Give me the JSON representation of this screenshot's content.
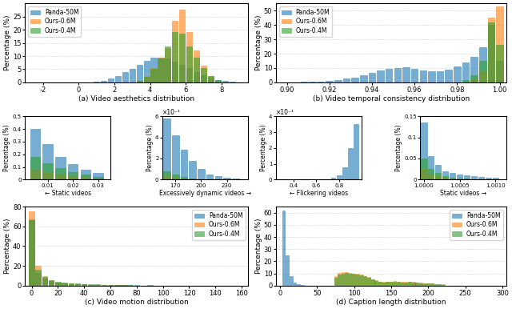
{
  "chart_data": [
    {
      "type": "bar",
      "xlabel": "(a) Video aesthetics distribution",
      "ylabel": "Percentage (%)",
      "xlim": [
        -3,
        9.5
      ],
      "ylim": [
        0,
        30
      ],
      "xticks": [
        -2,
        0,
        2,
        4,
        6,
        8
      ],
      "yticks": [
        0,
        5,
        10,
        15,
        20,
        25
      ],
      "grid": true,
      "legend": "upper left",
      "series": [
        {
          "name": "Panda-50M",
          "x": [
            1.0,
            1.4,
            1.8,
            2.2,
            2.6,
            3.0,
            3.4,
            3.8,
            4.2,
            4.6,
            5.0,
            5.4,
            5.8,
            6.2,
            6.6,
            7.0,
            7.4,
            7.8,
            8.2,
            8.6
          ],
          "values": [
            0.3,
            0.7,
            1.5,
            2.5,
            3.8,
            5.2,
            6.8,
            8.2,
            9.3,
            9.5,
            9.0,
            8.0,
            6.8,
            5.5,
            4.0,
            2.8,
            1.8,
            1.0,
            0.5,
            0.2
          ]
        },
        {
          "name": "Ours-0.6M",
          "x": [
            3.4,
            3.8,
            4.2,
            4.6,
            5.0,
            5.4,
            5.8,
            6.2,
            6.6,
            7.0,
            7.4
          ],
          "values": [
            0.5,
            2.5,
            5.5,
            9.5,
            13.0,
            23.5,
            27.5,
            19.0,
            12.0,
            6.5,
            2.5
          ]
        },
        {
          "name": "Ours-0.4M",
          "x": [
            3.4,
            3.8,
            4.2,
            4.6,
            5.0,
            5.4,
            5.8,
            6.2,
            6.6,
            7.0,
            7.4,
            7.8
          ],
          "values": [
            0.5,
            2.0,
            5.0,
            9.0,
            13.5,
            19.0,
            18.5,
            13.5,
            9.5,
            5.5,
            2.5,
            1.0
          ]
        }
      ]
    },
    {
      "type": "bar",
      "xlabel": "(b) Video temporal consistency distribution",
      "ylabel": "Percentage (%)",
      "xlim": [
        0.895,
        1.003
      ],
      "ylim": [
        0,
        55
      ],
      "xticks": [
        {
          "value": 0.9,
          "label": "0.90"
        },
        0.92,
        0.94,
        0.96,
        0.98,
        {
          "value": 1.0,
          "label": "1.00"
        }
      ],
      "yticks": [
        0,
        10,
        20,
        30,
        40,
        50
      ],
      "grid": true,
      "legend": "upper left",
      "series": [
        {
          "name": "Panda-50M",
          "x": [
            0.9,
            0.904,
            0.908,
            0.912,
            0.916,
            0.92,
            0.924,
            0.928,
            0.932,
            0.936,
            0.94,
            0.944,
            0.948,
            0.952,
            0.956,
            0.96,
            0.964,
            0.968,
            0.972,
            0.976,
            0.98,
            0.984,
            0.988,
            0.992,
            0.996,
            1.0
          ],
          "values": [
            0.1,
            0.2,
            0.3,
            0.5,
            0.8,
            1.2,
            1.8,
            2.5,
            3.5,
            5.0,
            6.5,
            8.5,
            9.5,
            10.0,
            10.5,
            9.5,
            8.5,
            7.5,
            8.0,
            9.0,
            11.0,
            14.0,
            18.0,
            24.5,
            40.0,
            15.0
          ]
        },
        {
          "name": "Ours-0.6M",
          "x": [
            0.988,
            0.992,
            0.996,
            1.0
          ],
          "values": [
            2.0,
            8.0,
            45.0,
            53.0
          ]
        },
        {
          "name": "Ours-0.4M",
          "x": [
            0.984,
            0.988,
            0.992,
            0.996,
            1.0
          ],
          "values": [
            1.5,
            5.0,
            15.0,
            42.0,
            26.0
          ]
        }
      ]
    },
    {
      "type": "bar",
      "title": "×10⁻¹",
      "xlabel": "← Flickering videos",
      "ylabel": "Percentage (%)",
      "xlim": [
        0.25,
        1.0
      ],
      "ylim": [
        0,
        4
      ],
      "xticks": [
        0.4,
        0.6,
        0.8
      ],
      "yticks": [
        0,
        1,
        2,
        3,
        4
      ],
      "series": [
        {
          "x": [
            0.3,
            0.35,
            0.4,
            0.45,
            0.5,
            0.55,
            0.6,
            0.65,
            0.7,
            0.75,
            0.8,
            0.85,
            0.9,
            0.95
          ],
          "values": [
            0.0,
            0.0,
            0.0,
            0.0,
            0.0,
            0.0,
            0.01,
            0.02,
            0.04,
            0.1,
            0.25,
            0.8,
            2.0,
            3.5
          ]
        },
        {
          "x": [
            0.3,
            0.35,
            0.4,
            0.45,
            0.5,
            0.55,
            0.6,
            0.65,
            0.7,
            0.75,
            0.8,
            0.85,
            0.9,
            0.95
          ],
          "values": [
            0.0,
            0.0,
            0.0,
            0.0,
            0.0,
            0.0,
            0.0,
            0.0,
            0.0,
            0.0,
            0.0,
            0.0,
            0.0,
            0.0
          ]
        },
        {
          "x": [
            0.3,
            0.35,
            0.4,
            0.45,
            0.5,
            0.55,
            0.6,
            0.65,
            0.7,
            0.75,
            0.8,
            0.85,
            0.9,
            0.95
          ],
          "values": [
            0.0,
            0.0,
            0.0,
            0.0,
            0.0,
            0.0,
            0.0,
            0.0,
            0.0,
            0.0,
            0.0,
            0.0,
            0.0,
            0.0
          ]
        }
      ]
    },
    {
      "type": "bar",
      "xlabel": "Static videos →",
      "ylabel": "Percentage (%)",
      "xlim": [
        0.99995,
        1.00115
      ],
      "ylim": [
        0,
        0.15
      ],
      "xticks": [
        {
          "value": 1.0,
          "label": "1.0000"
        },
        {
          "value": 1.0005,
          "label": "1.0005"
        },
        {
          "value": 1.001,
          "label": "1.0010"
        }
      ],
      "yticks": [
        0,
        0.05,
        0.1,
        0.15
      ],
      "series": [
        {
          "x": [
            1.0,
            1.0001,
            1.0002,
            1.0003,
            1.0004,
            1.0005,
            1.0006,
            1.0007,
            1.0008,
            1.0009,
            1.001
          ],
          "values": [
            0.135,
            0.055,
            0.035,
            0.02,
            0.015,
            0.012,
            0.01,
            0.008,
            0.006,
            0.005,
            0.004
          ]
        },
        {
          "x": [
            1.0,
            1.0001,
            1.0002,
            1.0003,
            1.0004,
            1.0005,
            1.0006,
            1.0007,
            1.0008,
            1.0009,
            1.001
          ],
          "values": [
            0.025,
            0.012,
            0.008,
            0.005,
            0.003,
            0.002,
            0.001,
            0.001,
            0.0,
            0.0,
            0.0
          ]
        },
        {
          "x": [
            1.0,
            1.0001,
            1.0002,
            1.0003,
            1.0004,
            1.0005,
            1.0006,
            1.0007,
            1.0008,
            1.0009,
            1.001
          ],
          "values": [
            0.05,
            0.025,
            0.015,
            0.008,
            0.005,
            0.003,
            0.002,
            0.001,
            0.0,
            0.0,
            0.0
          ]
        }
      ]
    },
    {
      "type": "bar",
      "xlabel": "(c) Video motion distribution",
      "ylabel": "Percentage (%)",
      "xlim": [
        -5,
        165
      ],
      "ylim": [
        0,
        80
      ],
      "xticks": [
        0,
        20,
        40,
        60,
        80,
        100,
        120,
        140,
        160
      ],
      "yticks": [
        0,
        20,
        40,
        60,
        80
      ],
      "grid": true,
      "legend": "upper right",
      "series": [
        {
          "name": "Panda-50M",
          "x": [
            0,
            5,
            10,
            15,
            20,
            25,
            30,
            35,
            40,
            45,
            50,
            55,
            60,
            65,
            70,
            75,
            80,
            90,
            100,
            110,
            120,
            130,
            140,
            150,
            160
          ],
          "values": [
            67,
            13,
            7,
            4.5,
            3.0,
            2.2,
            1.8,
            1.5,
            1.2,
            1.0,
            0.9,
            0.8,
            0.7,
            0.6,
            0.55,
            0.5,
            0.45,
            0.35,
            0.28,
            0.22,
            0.18,
            0.14,
            0.1,
            0.07,
            0.05
          ]
        },
        {
          "name": "Ours-0.6M",
          "x": [
            0,
            5,
            10,
            15,
            20,
            25,
            30,
            35,
            40,
            45,
            50,
            55,
            60,
            65,
            70,
            75,
            80
          ],
          "values": [
            75,
            20,
            10,
            5.5,
            3.5,
            2.5,
            2.0,
            1.6,
            1.3,
            1.0,
            0.8,
            0.7,
            0.55,
            0.45,
            0.35,
            0.25,
            0.18
          ]
        },
        {
          "name": "Ours-0.4M",
          "x": [
            0,
            5,
            10,
            15,
            20,
            25,
            30,
            35,
            40,
            45,
            50,
            55,
            60,
            65,
            70,
            75,
            80
          ],
          "values": [
            66,
            16,
            9,
            5.5,
            3.8,
            2.8,
            2.3,
            2.0,
            1.8,
            1.5,
            1.3,
            1.1,
            0.9,
            0.75,
            0.6,
            0.45,
            0.3
          ]
        }
      ]
    },
    {
      "type": "bar",
      "xlabel": "← Static videos",
      "ylabel": "Percentage (%)",
      "xlim": [
        0.001,
        0.035
      ],
      "ylim": [
        0,
        0.5
      ],
      "xticks": [
        0.01,
        0.02,
        0.03
      ],
      "yticks": [
        0,
        0.1,
        0.2,
        0.3,
        0.4,
        0.5
      ],
      "series": [
        {
          "x": [
            0.005,
            0.01,
            0.015,
            0.02,
            0.025,
            0.03
          ],
          "values": [
            0.4,
            0.28,
            0.18,
            0.12,
            0.08,
            0.05
          ]
        },
        {
          "x": [
            0.005,
            0.01,
            0.015,
            0.02,
            0.025,
            0.03
          ],
          "values": [
            0.08,
            0.06,
            0.04,
            0.03,
            0.02,
            0.01
          ]
        },
        {
          "x": [
            0.005,
            0.01,
            0.015,
            0.02,
            0.025,
            0.03
          ],
          "values": [
            0.18,
            0.13,
            0.09,
            0.06,
            0.04,
            0.02
          ]
        }
      ]
    },
    {
      "type": "bar",
      "title": "×10⁻¹",
      "xlabel": "Excessively dynamic videos →",
      "ylabel": "Percentage (%)",
      "xlim": [
        155,
        255
      ],
      "ylim": [
        0,
        6
      ],
      "xticks": [
        170,
        200,
        230
      ],
      "yticks": [
        0,
        2,
        4,
        6
      ],
      "series": [
        {
          "x": [
            160,
            170,
            180,
            190,
            200,
            210,
            220,
            230,
            240,
            250
          ],
          "values": [
            5.8,
            4.2,
            2.8,
            1.8,
            1.0,
            0.5,
            0.3,
            0.15,
            0.08,
            0.04
          ]
        },
        {
          "x": [
            160,
            170,
            180,
            190,
            200,
            210,
            220,
            230,
            240,
            250
          ],
          "values": [
            0.3,
            0.15,
            0.08,
            0.04,
            0.02,
            0.01,
            0.0,
            0.0,
            0.0,
            0.0
          ]
        },
        {
          "x": [
            160,
            170,
            180,
            190,
            200,
            210,
            220,
            230,
            240,
            250
          ],
          "values": [
            0.8,
            0.5,
            0.25,
            0.12,
            0.06,
            0.03,
            0.01,
            0.0,
            0.0,
            0.0
          ]
        }
      ]
    },
    {
      "type": "bar",
      "xlabel": "(d) Caption length distribution",
      "ylabel": "Percentage (%)",
      "xlim": [
        -5,
        305
      ],
      "ylim": [
        0,
        65
      ],
      "xticks": [
        0,
        50,
        100,
        150,
        200,
        250,
        300
      ],
      "yticks": [
        0,
        10,
        20,
        30,
        40,
        50,
        60
      ],
      "grid": true,
      "legend": "upper right",
      "series": [
        {
          "name": "Panda-50M",
          "x": [
            5,
            10,
            15,
            20,
            25,
            30
          ],
          "values": [
            62,
            25,
            8,
            2.5,
            1.0,
            0.5
          ]
        },
        {
          "name": "Ours-0.6M",
          "x": [
            75,
            80,
            85,
            90,
            95,
            100,
            105,
            110,
            115,
            120,
            125,
            130,
            135,
            140,
            145,
            150,
            155,
            160,
            165,
            170,
            175,
            180,
            185,
            190,
            195,
            200,
            205,
            210,
            215,
            220
          ],
          "values": [
            7.5,
            10.5,
            10.8,
            11.0,
            10.5,
            10.0,
            9.5,
            9.0,
            8.0,
            7.0,
            5.5,
            4.5,
            3.5,
            3.0,
            3.2,
            3.5,
            3.8,
            3.5,
            3.2,
            3.0,
            3.2,
            3.0,
            2.8,
            2.5,
            2.2,
            2.0,
            1.8,
            1.5,
            1.2,
            1.0
          ]
        },
        {
          "name": "Ours-0.4M",
          "x": [
            75,
            80,
            85,
            90,
            95,
            100,
            105,
            110,
            115,
            120,
            125,
            130,
            135,
            140,
            145,
            150,
            155,
            160,
            165,
            170,
            175,
            180,
            185,
            190,
            195,
            200,
            205,
            210,
            215,
            220
          ],
          "values": [
            6.5,
            9.0,
            9.5,
            10.5,
            10.0,
            9.5,
            9.0,
            8.5,
            7.5,
            6.5,
            5.0,
            4.0,
            3.2,
            2.8,
            3.0,
            3.2,
            3.5,
            3.2,
            2.8,
            2.8,
            3.0,
            2.8,
            2.5,
            2.2,
            2.0,
            1.8,
            1.6,
            1.4,
            1.1,
            0.9
          ]
        }
      ]
    }
  ]
}
